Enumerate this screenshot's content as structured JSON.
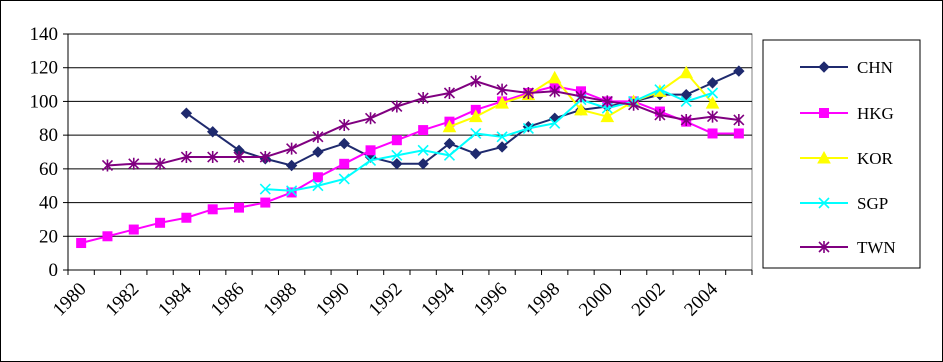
{
  "chart_data": {
    "type": "line",
    "title": "",
    "xlabel": "",
    "ylabel": "",
    "xlim": [
      1980,
      2005
    ],
    "ylim": [
      0,
      140
    ],
    "ytick_step": 20,
    "yticks": [
      "0",
      "20",
      "40",
      "60",
      "80",
      "100",
      "120",
      "140"
    ],
    "xticks": [
      "1980",
      "1982",
      "1984",
      "1986",
      "1988",
      "1990",
      "1992",
      "1994",
      "1996",
      "1998",
      "2000",
      "2002",
      "2004"
    ],
    "grid": "horizontal",
    "legend": "right",
    "series": [
      {
        "name": "CHN",
        "color": "#1f2a6e",
        "marker": "diamond",
        "x": [
          1984,
          1985,
          1986,
          1987,
          1988,
          1989,
          1990,
          1991,
          1992,
          1993,
          1994,
          1995,
          1996,
          1997,
          1998,
          1999,
          2000,
          2001,
          2002,
          2003,
          2004,
          2005
        ],
        "values": [
          93,
          82,
          71,
          66,
          62,
          70,
          75,
          67,
          63,
          63,
          75,
          69,
          73,
          85,
          90,
          95,
          97,
          100,
          104,
          104,
          111,
          118
        ]
      },
      {
        "name": "HKG",
        "color": "#ff00ff",
        "marker": "square",
        "x": [
          1980,
          1981,
          1982,
          1983,
          1984,
          1985,
          1986,
          1987,
          1988,
          1989,
          1990,
          1991,
          1992,
          1993,
          1994,
          1995,
          1996,
          1997,
          1998,
          1999,
          2000,
          2001,
          2002,
          2003,
          2004,
          2005
        ],
        "values": [
          16,
          20,
          24,
          28,
          31,
          36,
          37,
          40,
          46,
          55,
          63,
          71,
          77,
          83,
          88,
          95,
          100,
          105,
          109,
          106,
          100,
          100,
          94,
          88,
          81,
          81
        ]
      },
      {
        "name": "KOR",
        "color": "#ffff00",
        "marker": "triangle",
        "x": [
          1994,
          1995,
          1996,
          1997,
          1998,
          1999,
          2000,
          2001,
          2002,
          2003,
          2004
        ],
        "values": [
          85,
          91,
          99,
          104,
          114,
          95,
          91,
          100,
          106,
          117,
          99
        ]
      },
      {
        "name": "SGP",
        "color": "#00ffff",
        "marker": "x",
        "x": [
          1987,
          1988,
          1989,
          1990,
          1991,
          1992,
          1993,
          1994,
          1995,
          1996,
          1997,
          1998,
          1999,
          2000,
          2001,
          2002,
          2003,
          2004
        ],
        "values": [
          48,
          47,
          50,
          54,
          65,
          68,
          71,
          68,
          81,
          79,
          84,
          87,
          101,
          96,
          100,
          107,
          100,
          105
        ]
      },
      {
        "name": "TWN",
        "color": "#800080",
        "marker": "star",
        "x": [
          1981,
          1982,
          1983,
          1984,
          1985,
          1986,
          1987,
          1988,
          1989,
          1990,
          1991,
          1992,
          1993,
          1994,
          1995,
          1996,
          1997,
          1998,
          1999,
          2000,
          2001,
          2002,
          2003,
          2004,
          2005
        ],
        "values": [
          62,
          63,
          63,
          67,
          67,
          67,
          67,
          72,
          79,
          86,
          90,
          97,
          102,
          105,
          112,
          107,
          105,
          106,
          103,
          100,
          98,
          92,
          89,
          91,
          89
        ]
      }
    ]
  }
}
